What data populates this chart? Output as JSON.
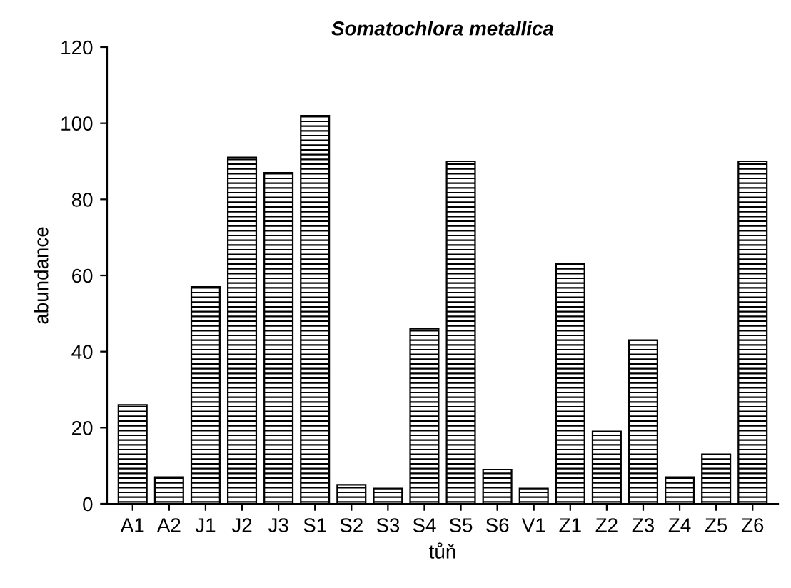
{
  "chart_data": {
    "type": "bar",
    "title": "Somatochlora metallica",
    "xlabel": "tůň",
    "ylabel": "abundance",
    "categories": [
      "A1",
      "A2",
      "J1",
      "J2",
      "J3",
      "S1",
      "S2",
      "S3",
      "S4",
      "S5",
      "S6",
      "V1",
      "Z1",
      "Z2",
      "Z3",
      "Z4",
      "Z5",
      "Z6"
    ],
    "values": [
      26,
      7,
      57,
      91,
      87,
      102,
      5,
      4,
      46,
      90,
      9,
      4,
      63,
      19,
      43,
      7,
      13,
      90
    ],
    "color": "#000000",
    "ylim": [
      0,
      120
    ],
    "yticks": [
      0,
      20,
      40,
      60,
      80,
      100,
      120
    ],
    "grid": false,
    "legend": false
  }
}
